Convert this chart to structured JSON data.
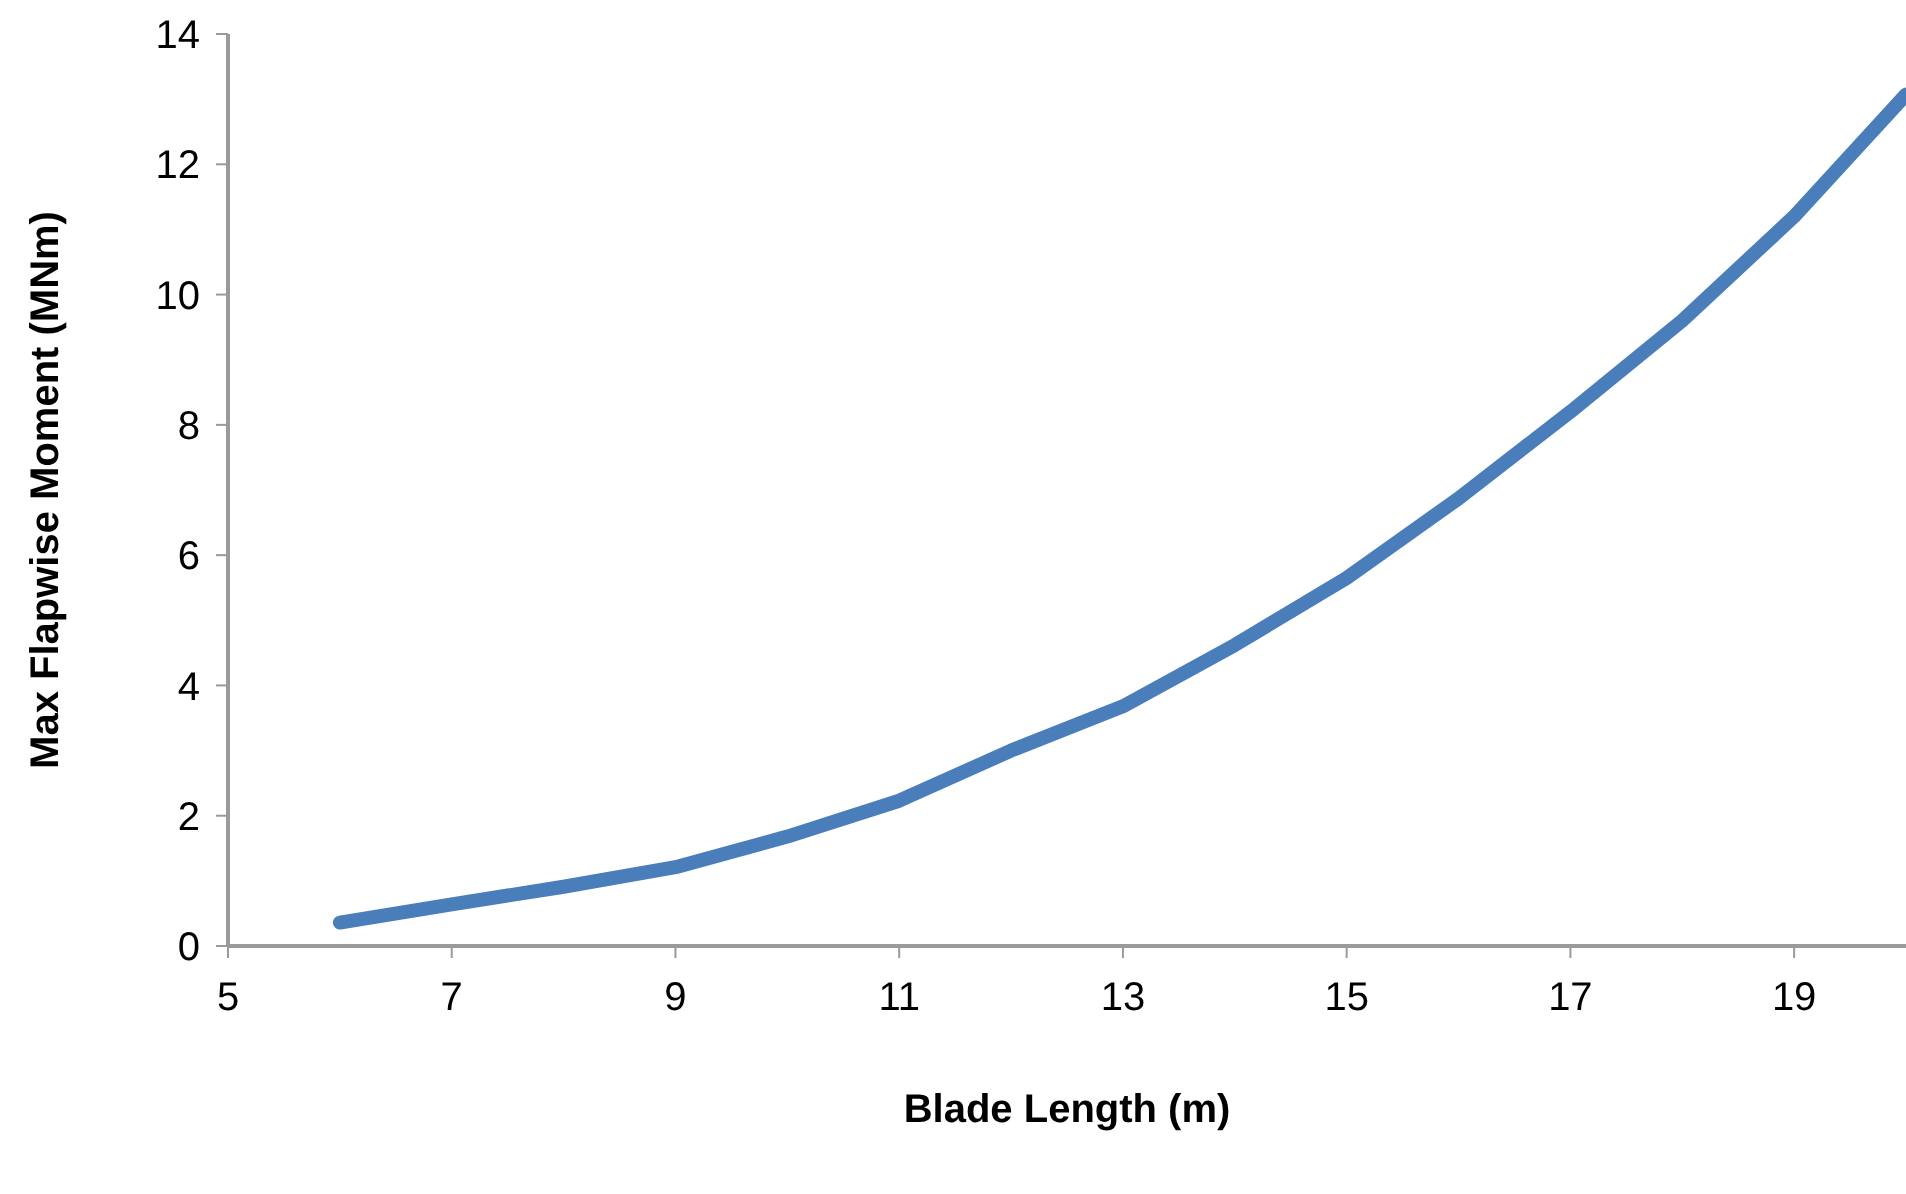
{
  "chart_data": {
    "type": "line",
    "xlabel": "Blade Length (m)",
    "ylabel": "Max Flapwise  Moment (MNm)",
    "x": [
      6,
      7,
      8,
      9,
      10,
      11,
      12,
      13,
      14,
      15,
      16,
      17,
      18,
      19,
      20
    ],
    "series": [
      {
        "color": "#4a7ebb",
        "values": [
          0.36,
          0.64,
          0.91,
          1.21,
          1.68,
          2.23,
          3.0,
          3.68,
          4.62,
          5.65,
          6.87,
          8.2,
          9.6,
          11.2,
          13.07
        ]
      }
    ],
    "xlim": [
      5,
      20
    ],
    "xticks": [
      5,
      7,
      9,
      11,
      13,
      15,
      17,
      19
    ],
    "ylim": [
      0,
      14
    ],
    "yticks": [
      0,
      2,
      4,
      6,
      8,
      10,
      12,
      14
    ],
    "grid": false,
    "legend": false,
    "marker": "none",
    "line_style": "solid"
  }
}
